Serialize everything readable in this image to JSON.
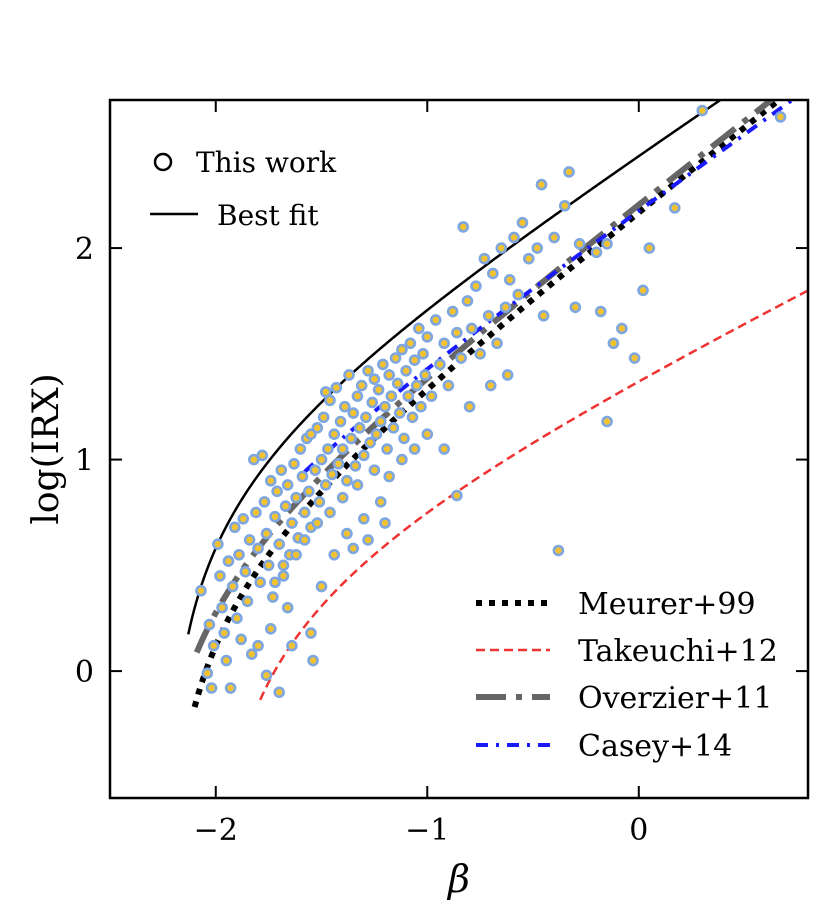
{
  "chart_data": {
    "type": "scatter",
    "title": "",
    "xlabel": "β",
    "ylabel": "log(IRX)",
    "xlim": [
      -2.5,
      0.8
    ],
    "ylim": [
      -0.6,
      2.7
    ],
    "x_ticks": [
      {
        "value": -2,
        "label": "−2"
      },
      {
        "value": -1,
        "label": "−1"
      },
      {
        "value": 0,
        "label": "0"
      }
    ],
    "y_ticks": [
      {
        "value": 0,
        "label": "0"
      },
      {
        "value": 1,
        "label": "1"
      },
      {
        "value": 2,
        "label": "2"
      }
    ],
    "grid": false,
    "legends": [
      {
        "placement": "top-left",
        "entries": [
          {
            "key": "this_work",
            "label": "This work",
            "symbol": "circle"
          },
          {
            "key": "best_fit",
            "label": "Best fit",
            "symbol": "line"
          }
        ]
      },
      {
        "placement": "lower-right",
        "entries": [
          {
            "key": "meurer",
            "label": "Meurer+99"
          },
          {
            "key": "takeuchi",
            "label": "Takeuchi+12"
          },
          {
            "key": "overzier",
            "label": "Overzier+11"
          },
          {
            "key": "casey",
            "label": "Casey+14"
          }
        ]
      }
    ],
    "series": [
      {
        "key": "this_work",
        "name": "This work",
        "kind": "scatter",
        "marker_face": "#f2c230",
        "marker_edge": "#7ea6e0",
        "points": [
          [
            -2.07,
            0.38
          ],
          [
            -2.04,
            -0.01
          ],
          [
            -2.03,
            0.22
          ],
          [
            -2.02,
            -0.08
          ],
          [
            -2.01,
            0.12
          ],
          [
            -1.99,
            0.6
          ],
          [
            -1.98,
            0.45
          ],
          [
            -1.97,
            0.3
          ],
          [
            -1.96,
            0.18
          ],
          [
            -1.95,
            0.05
          ],
          [
            -1.94,
            0.52
          ],
          [
            -1.93,
            -0.08
          ],
          [
            -1.92,
            0.4
          ],
          [
            -1.91,
            0.68
          ],
          [
            -1.9,
            0.25
          ],
          [
            -1.89,
            0.55
          ],
          [
            -1.88,
            0.15
          ],
          [
            -1.87,
            0.72
          ],
          [
            -1.86,
            0.47
          ],
          [
            -1.85,
            0.33
          ],
          [
            -1.84,
            0.62
          ],
          [
            -1.83,
            0.08
          ],
          [
            -1.82,
            1.0
          ],
          [
            -1.81,
            0.75
          ],
          [
            -1.8,
            0.58
          ],
          [
            -1.79,
            0.42
          ],
          [
            -1.78,
            1.02
          ],
          [
            -1.77,
            0.8
          ],
          [
            -1.76,
            0.65
          ],
          [
            -1.75,
            0.5
          ],
          [
            -1.74,
            0.9
          ],
          [
            -1.73,
            0.35
          ],
          [
            -1.72,
            0.73
          ],
          [
            -1.71,
            0.85
          ],
          [
            -1.7,
            0.6
          ],
          [
            -1.69,
            0.95
          ],
          [
            -1.68,
            0.45
          ],
          [
            -1.67,
            0.78
          ],
          [
            -1.66,
            0.88
          ],
          [
            -1.65,
            0.55
          ],
          [
            -1.64,
            0.7
          ],
          [
            -1.63,
            0.98
          ],
          [
            -1.62,
            0.82
          ],
          [
            -1.61,
            0.63
          ],
          [
            -1.6,
            1.05
          ],
          [
            -1.59,
            0.92
          ],
          [
            -1.58,
            0.75
          ],
          [
            -1.57,
            1.1
          ],
          [
            -1.56,
            0.85
          ],
          [
            -1.55,
            0.68
          ],
          [
            -1.54,
            0.05
          ],
          [
            -1.53,
            0.95
          ],
          [
            -1.52,
            1.15
          ],
          [
            -1.51,
            0.8
          ],
          [
            -1.5,
            1.0
          ],
          [
            -1.49,
            1.2
          ],
          [
            -1.48,
            0.88
          ],
          [
            -1.47,
            1.05
          ],
          [
            -1.46,
            1.28
          ],
          [
            -1.45,
            0.93
          ],
          [
            -1.44,
            1.12
          ],
          [
            -1.43,
            1.34
          ],
          [
            -1.42,
            0.98
          ],
          [
            -1.41,
            1.18
          ],
          [
            -1.4,
            1.05
          ],
          [
            -1.39,
            1.25
          ],
          [
            -1.38,
            0.9
          ],
          [
            -1.37,
            1.4
          ],
          [
            -1.36,
            1.1
          ],
          [
            -1.35,
            1.22
          ],
          [
            -1.34,
            0.97
          ],
          [
            -1.33,
            1.3
          ],
          [
            -1.32,
            1.15
          ],
          [
            -1.31,
            1.35
          ],
          [
            -1.3,
            1.02
          ],
          [
            -1.29,
            1.2
          ],
          [
            -1.28,
            1.42
          ],
          [
            -1.27,
            1.08
          ],
          [
            -1.26,
            1.27
          ],
          [
            -1.25,
            1.38
          ],
          [
            -1.24,
            1.12
          ],
          [
            -1.23,
            1.33
          ],
          [
            -1.22,
            1.18
          ],
          [
            -1.21,
            1.45
          ],
          [
            -1.2,
            1.25
          ],
          [
            -1.19,
            1.05
          ],
          [
            -1.18,
            1.4
          ],
          [
            -1.17,
            1.3
          ],
          [
            -1.16,
            1.15
          ],
          [
            -1.15,
            1.48
          ],
          [
            -1.14,
            1.36
          ],
          [
            -1.13,
            1.22
          ],
          [
            -1.12,
            1.52
          ],
          [
            -1.11,
            1.1
          ],
          [
            -1.1,
            1.42
          ],
          [
            -1.09,
            1.3
          ],
          [
            -1.08,
            1.55
          ],
          [
            -1.07,
            1.2
          ],
          [
            -1.06,
            1.47
          ],
          [
            -1.05,
            1.35
          ],
          [
            -1.04,
            1.62
          ],
          [
            -1.03,
            1.25
          ],
          [
            -1.02,
            1.5
          ],
          [
            -1.01,
            1.4
          ],
          [
            -1.0,
            1.58
          ],
          [
            -0.98,
            1.3
          ],
          [
            -0.96,
            1.66
          ],
          [
            -0.94,
            1.45
          ],
          [
            -0.92,
            1.55
          ],
          [
            -0.9,
            1.35
          ],
          [
            -0.88,
            1.7
          ],
          [
            -0.86,
            1.6
          ],
          [
            -0.84,
            1.48
          ],
          [
            -0.83,
            2.1
          ],
          [
            -0.81,
            1.75
          ],
          [
            -0.79,
            1.62
          ],
          [
            -0.77,
            1.82
          ],
          [
            -0.75,
            1.5
          ],
          [
            -0.73,
            1.95
          ],
          [
            -0.71,
            1.68
          ],
          [
            -0.69,
            1.88
          ],
          [
            -0.67,
            1.55
          ],
          [
            -0.65,
            2.0
          ],
          [
            -0.63,
            1.72
          ],
          [
            -0.61,
            1.85
          ],
          [
            -0.59,
            2.05
          ],
          [
            -0.57,
            1.78
          ],
          [
            -0.55,
            2.12
          ],
          [
            -0.52,
            1.95
          ],
          [
            -0.48,
            2.0
          ],
          [
            -0.45,
            1.68
          ],
          [
            -0.4,
            2.05
          ],
          [
            -0.38,
            0.57
          ],
          [
            -0.35,
            2.2
          ],
          [
            -0.33,
            2.36
          ],
          [
            -0.3,
            1.72
          ],
          [
            -0.28,
            2.02
          ],
          [
            -0.2,
            1.98
          ],
          [
            -0.18,
            1.7
          ],
          [
            -0.15,
            2.02
          ],
          [
            -0.12,
            1.55
          ],
          [
            -0.08,
            1.62
          ],
          [
            -0.02,
            1.48
          ],
          [
            0.02,
            1.8
          ],
          [
            0.05,
            2.0
          ],
          [
            -1.46,
            0.75
          ],
          [
            -1.4,
            0.82
          ],
          [
            -1.33,
            0.88
          ],
          [
            -1.25,
            0.95
          ],
          [
            -1.18,
            0.92
          ],
          [
            -1.12,
            1.0
          ],
          [
            -1.06,
            1.05
          ],
          [
            -1.0,
            1.12
          ],
          [
            -1.52,
            0.7
          ],
          [
            -1.58,
            0.62
          ],
          [
            -1.62,
            0.55
          ],
          [
            -1.68,
            0.5
          ],
          [
            -1.72,
            0.42
          ],
          [
            -1.66,
            0.3
          ],
          [
            -1.74,
            0.2
          ],
          [
            -1.8,
            0.12
          ],
          [
            -1.76,
            -0.02
          ],
          [
            -1.7,
            -0.1
          ],
          [
            -1.55,
            0.18
          ],
          [
            -1.64,
            0.12
          ],
          [
            -1.5,
            0.4
          ],
          [
            -1.44,
            0.55
          ],
          [
            -1.38,
            0.65
          ],
          [
            -1.3,
            0.72
          ],
          [
            -1.22,
            0.8
          ],
          [
            -0.92,
            1.05
          ],
          [
            -0.86,
            0.83
          ],
          [
            -0.8,
            1.25
          ],
          [
            -0.7,
            1.35
          ],
          [
            -0.62,
            1.4
          ],
          [
            -1.35,
            0.58
          ],
          [
            -1.28,
            0.62
          ],
          [
            -1.2,
            0.7
          ],
          [
            -1.48,
            1.32
          ],
          [
            -1.55,
            1.12
          ],
          [
            0.3,
            2.65
          ],
          [
            0.67,
            2.62
          ],
          [
            0.17,
            2.19
          ],
          [
            -0.15,
            1.18
          ],
          [
            -0.46,
            2.3
          ]
        ]
      },
      {
        "key": "best_fit",
        "name": "Best fit",
        "kind": "line",
        "color": "#000000",
        "x": [
          -2.13,
          0.55
        ],
        "a": 1.68,
        "b": 0.95,
        "beta0": -2.23
      },
      {
        "key": "meurer",
        "name": "Meurer+99",
        "kind": "line",
        "color": "#000000",
        "x": [
          -2.1,
          0.8
        ],
        "a": 1.99,
        "b": 0.4,
        "beta0": -2.23
      },
      {
        "key": "takeuchi",
        "name": "Takeuchi+12",
        "kind": "line",
        "color": "#ee3333",
        "x": [
          -1.79,
          0.8
        ],
        "a": 1.26,
        "b": 0.4,
        "beta0": -2.01
      },
      {
        "key": "overzier",
        "name": "Overzier+11",
        "kind": "line",
        "color": "#666666",
        "x": [
          -2.09,
          0.8
        ],
        "a": 1.96,
        "b": 0.4,
        "beta0": -2.31
      },
      {
        "key": "casey",
        "name": "Casey+14",
        "kind": "line",
        "color": "#1a1aff",
        "x": [
          -1.58,
          0.8
        ],
        "a": 1.79,
        "b": 0.4,
        "beta0": -2.49
      }
    ]
  }
}
